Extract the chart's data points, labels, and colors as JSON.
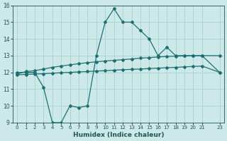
{
  "title": "",
  "xlabel": "Humidex (Indice chaleur)",
  "ylabel": "",
  "bg_color": "#cce8e8",
  "grid_color": "#aad4d4",
  "line_color": "#1e7070",
  "xlim": [
    -0.5,
    23.5
  ],
  "ylim": [
    9,
    16
  ],
  "xticks": [
    0,
    1,
    2,
    3,
    4,
    5,
    6,
    7,
    8,
    9,
    10,
    11,
    12,
    13,
    14,
    15,
    16,
    17,
    18,
    19,
    20,
    21,
    23
  ],
  "yticks": [
    9,
    10,
    11,
    12,
    13,
    14,
    15,
    16
  ],
  "line1_x": [
    0,
    1,
    2,
    3,
    4,
    5,
    6,
    7,
    8,
    9,
    10,
    11,
    12,
    13,
    14,
    15,
    16,
    17,
    18,
    19,
    20,
    21,
    23
  ],
  "line1_y": [
    12.0,
    12.0,
    12.0,
    11.1,
    9.0,
    9.0,
    10.0,
    9.9,
    10.0,
    13.0,
    15.0,
    15.8,
    15.0,
    15.0,
    14.5,
    14.0,
    13.0,
    13.5,
    13.0,
    13.0,
    13.0,
    13.0,
    12.0
  ],
  "line2_x": [
    0,
    1,
    2,
    3,
    4,
    5,
    6,
    7,
    8,
    9,
    10,
    11,
    12,
    13,
    14,
    15,
    16,
    17,
    18,
    19,
    20,
    21,
    23
  ],
  "line2_y": [
    11.9,
    12.05,
    12.1,
    12.2,
    12.3,
    12.38,
    12.45,
    12.52,
    12.58,
    12.63,
    12.68,
    12.72,
    12.76,
    12.8,
    12.85,
    12.88,
    12.92,
    12.95,
    12.97,
    12.98,
    13.0,
    13.0,
    13.0
  ],
  "line3_x": [
    0,
    1,
    2,
    3,
    4,
    5,
    6,
    7,
    8,
    9,
    10,
    11,
    12,
    13,
    14,
    15,
    16,
    17,
    18,
    19,
    20,
    21,
    23
  ],
  "line3_y": [
    11.85,
    11.88,
    11.9,
    11.92,
    11.95,
    11.98,
    12.0,
    12.03,
    12.05,
    12.08,
    12.1,
    12.13,
    12.16,
    12.18,
    12.2,
    12.23,
    12.25,
    12.28,
    12.3,
    12.33,
    12.35,
    12.38,
    12.0
  ]
}
